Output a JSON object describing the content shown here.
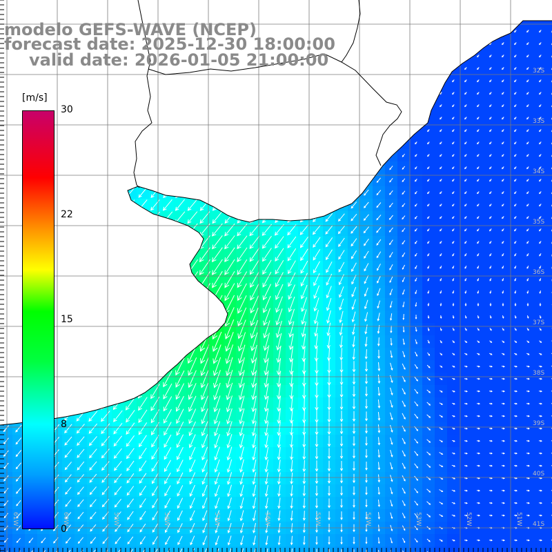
{
  "header": {
    "line1": "modelo GEFS-WAVE (NCEP)",
    "line2": "forecast date: 2025-12-30 18:00:00",
    "line3": "valid date: 2026-01-05 21:00:00"
  },
  "colorbar": {
    "unit": "[m/s]",
    "min": 0,
    "max": 30,
    "ticks": [
      "30",
      "22",
      "15",
      "8",
      "0"
    ],
    "colors": [
      "#0010ff",
      "#00a0ff",
      "#00ffff",
      "#00ff40",
      "#00ff00",
      "#ffff00",
      "#ff9000",
      "#ff0000",
      "#c8006a"
    ]
  },
  "map": {
    "lat_labels": [
      "32S",
      "33S",
      "34S",
      "35S",
      "36S",
      "37S",
      "38S",
      "39S",
      "40S",
      "41S"
    ],
    "lon_labels": [
      "61W",
      "60W",
      "59W",
      "58W",
      "57W",
      "56W",
      "55W",
      "54W",
      "53W",
      "52W",
      "51W"
    ],
    "land_color": "#ffffff",
    "grid_color": "#7a7a7a",
    "coast_color": "#000000",
    "arrow_color": "#ffffff"
  }
}
